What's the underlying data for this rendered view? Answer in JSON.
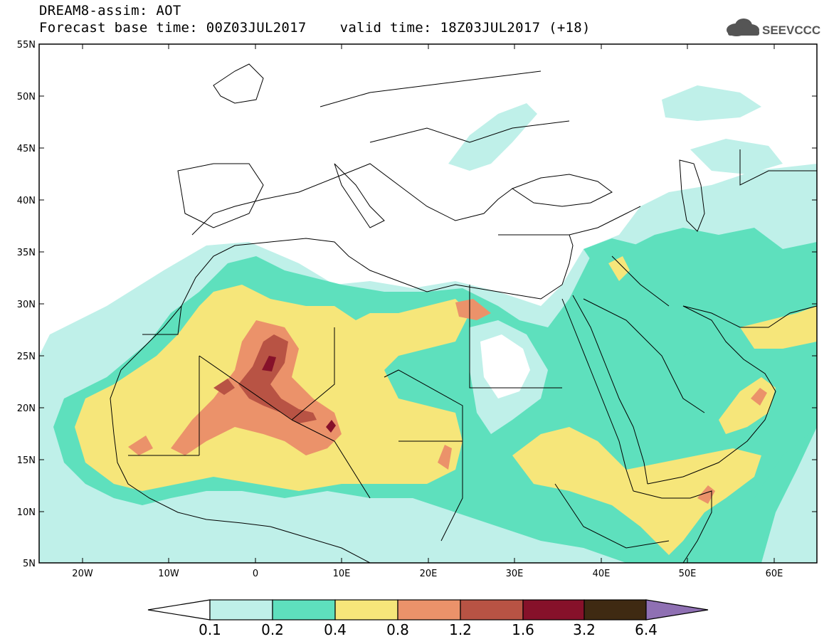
{
  "header": {
    "title_line1": "DREAM8-assim: AOT",
    "title_line2": "Forecast base time: 00Z03JUL2017    valid time: 18Z03JUL2017 (+18)",
    "logo_text": "SEEVCCC"
  },
  "map": {
    "lat_labels": [
      "55N",
      "50N",
      "45N",
      "40N",
      "35N",
      "30N",
      "25N",
      "20N",
      "15N",
      "10N",
      "5N"
    ],
    "lon_labels": [
      "20W",
      "10W",
      "0",
      "10E",
      "20E",
      "30E",
      "40E",
      "50E",
      "60E"
    ],
    "region": "North Africa, Mediterranean, Middle East",
    "lon_range": [
      -25,
      65
    ],
    "lat_range": [
      5,
      55
    ]
  },
  "legend": {
    "levels": [
      "0.1",
      "0.2",
      "0.4",
      "0.8",
      "1.2",
      "1.6",
      "3.2",
      "6.4"
    ],
    "colors": [
      "#bff0e9",
      "#5ee0bd",
      "#f6e67a",
      "#eb926a",
      "#b85344",
      "#86112a",
      "#3f2a12",
      "#8f70b3"
    ],
    "under_color": "#ffffff"
  },
  "colors": {
    "ocean": "#ffffff",
    "border": "#000000",
    "light": "#bff0e9",
    "low": "#5ee0bd",
    "mid": "#f6e67a",
    "high": "#eb926a",
    "veryhigh": "#b85344",
    "extreme": "#86112a"
  }
}
